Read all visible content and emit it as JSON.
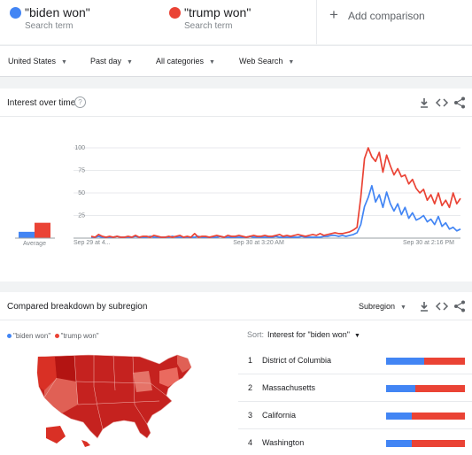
{
  "terms": [
    {
      "name": "\"biden won\"",
      "sub": "Search term",
      "color": "#4285f4"
    },
    {
      "name": "\"trump won\"",
      "sub": "Search term",
      "color": "#ea4335"
    }
  ],
  "add_comparison": {
    "icon": "plus-icon",
    "label": "Add comparison"
  },
  "filters": [
    {
      "label": "United States"
    },
    {
      "label": "Past day"
    },
    {
      "label": "All categories"
    },
    {
      "label": "Web Search"
    }
  ],
  "interest_card": {
    "title": "Interest over time",
    "help_icon": "?",
    "tools": [
      "download-icon",
      "embed-icon",
      "share-icon"
    ]
  },
  "chart_data": {
    "type": "line",
    "average_label": "Average",
    "average": {
      "biden": 7,
      "trump": 17
    },
    "y_ticks": [
      "100",
      "75",
      "50",
      "25"
    ],
    "ylim": [
      0,
      100
    ],
    "x_tick_labels": [
      "Sep 29 at 4...",
      "Sep 30 at 3:20 AM",
      "Sep 30 at 2:16 PM"
    ],
    "series": [
      {
        "key": "biden",
        "color": "#4285f4",
        "values": [
          1,
          1,
          2,
          1,
          1,
          1,
          1,
          2,
          1,
          1,
          1,
          1,
          2,
          1,
          1,
          1,
          2,
          1,
          1,
          1,
          1,
          1,
          2,
          1,
          1,
          1,
          1,
          1,
          1,
          2,
          1,
          1,
          1,
          1,
          1,
          2,
          1,
          1,
          1,
          1,
          1,
          1,
          1,
          2,
          1,
          1,
          1,
          1,
          1,
          1,
          2,
          1,
          1,
          1,
          1,
          1,
          1,
          2,
          1,
          1,
          1,
          1,
          1,
          2,
          2,
          3,
          3,
          2,
          3,
          2,
          3,
          4,
          6,
          15,
          35,
          45,
          58,
          40,
          48,
          34,
          51,
          38,
          30,
          38,
          26,
          34,
          22,
          28,
          20,
          22,
          25,
          18,
          21,
          15,
          24,
          13,
          17,
          10,
          12,
          8,
          10
        ]
      },
      {
        "key": "trump",
        "color": "#ea4335",
        "values": [
          2,
          1,
          4,
          2,
          1,
          2,
          1,
          2,
          1,
          1,
          2,
          1,
          3,
          1,
          2,
          2,
          1,
          3,
          2,
          1,
          1,
          2,
          1,
          2,
          3,
          1,
          2,
          1,
          5,
          1,
          2,
          2,
          1,
          2,
          3,
          2,
          1,
          3,
          2,
          2,
          3,
          2,
          1,
          2,
          3,
          2,
          2,
          3,
          2,
          2,
          3,
          4,
          2,
          3,
          2,
          3,
          4,
          3,
          2,
          3,
          4,
          3,
          5,
          3,
          4,
          5,
          6,
          5,
          5,
          6,
          7,
          9,
          12,
          45,
          88,
          100,
          90,
          85,
          95,
          73,
          92,
          80,
          70,
          77,
          68,
          70,
          60,
          65,
          55,
          50,
          54,
          42,
          48,
          38,
          50,
          36,
          42,
          34,
          50,
          38,
          44
        ]
      }
    ]
  },
  "breakdown_card": {
    "title": "Compared breakdown by subregion",
    "dropdown": "Subregion",
    "legend": [
      "\"biden won\"",
      "\"trump won\""
    ],
    "sort_key": "Sort:",
    "sort_value": "Interest for \"biden won\"",
    "rows": [
      {
        "rank": "1",
        "name": "District of Columbia",
        "biden_share": 48
      },
      {
        "rank": "2",
        "name": "Massachusetts",
        "biden_share": 37
      },
      {
        "rank": "3",
        "name": "California",
        "biden_share": 33
      },
      {
        "rank": "4",
        "name": "Washington",
        "biden_share": 33
      }
    ]
  }
}
